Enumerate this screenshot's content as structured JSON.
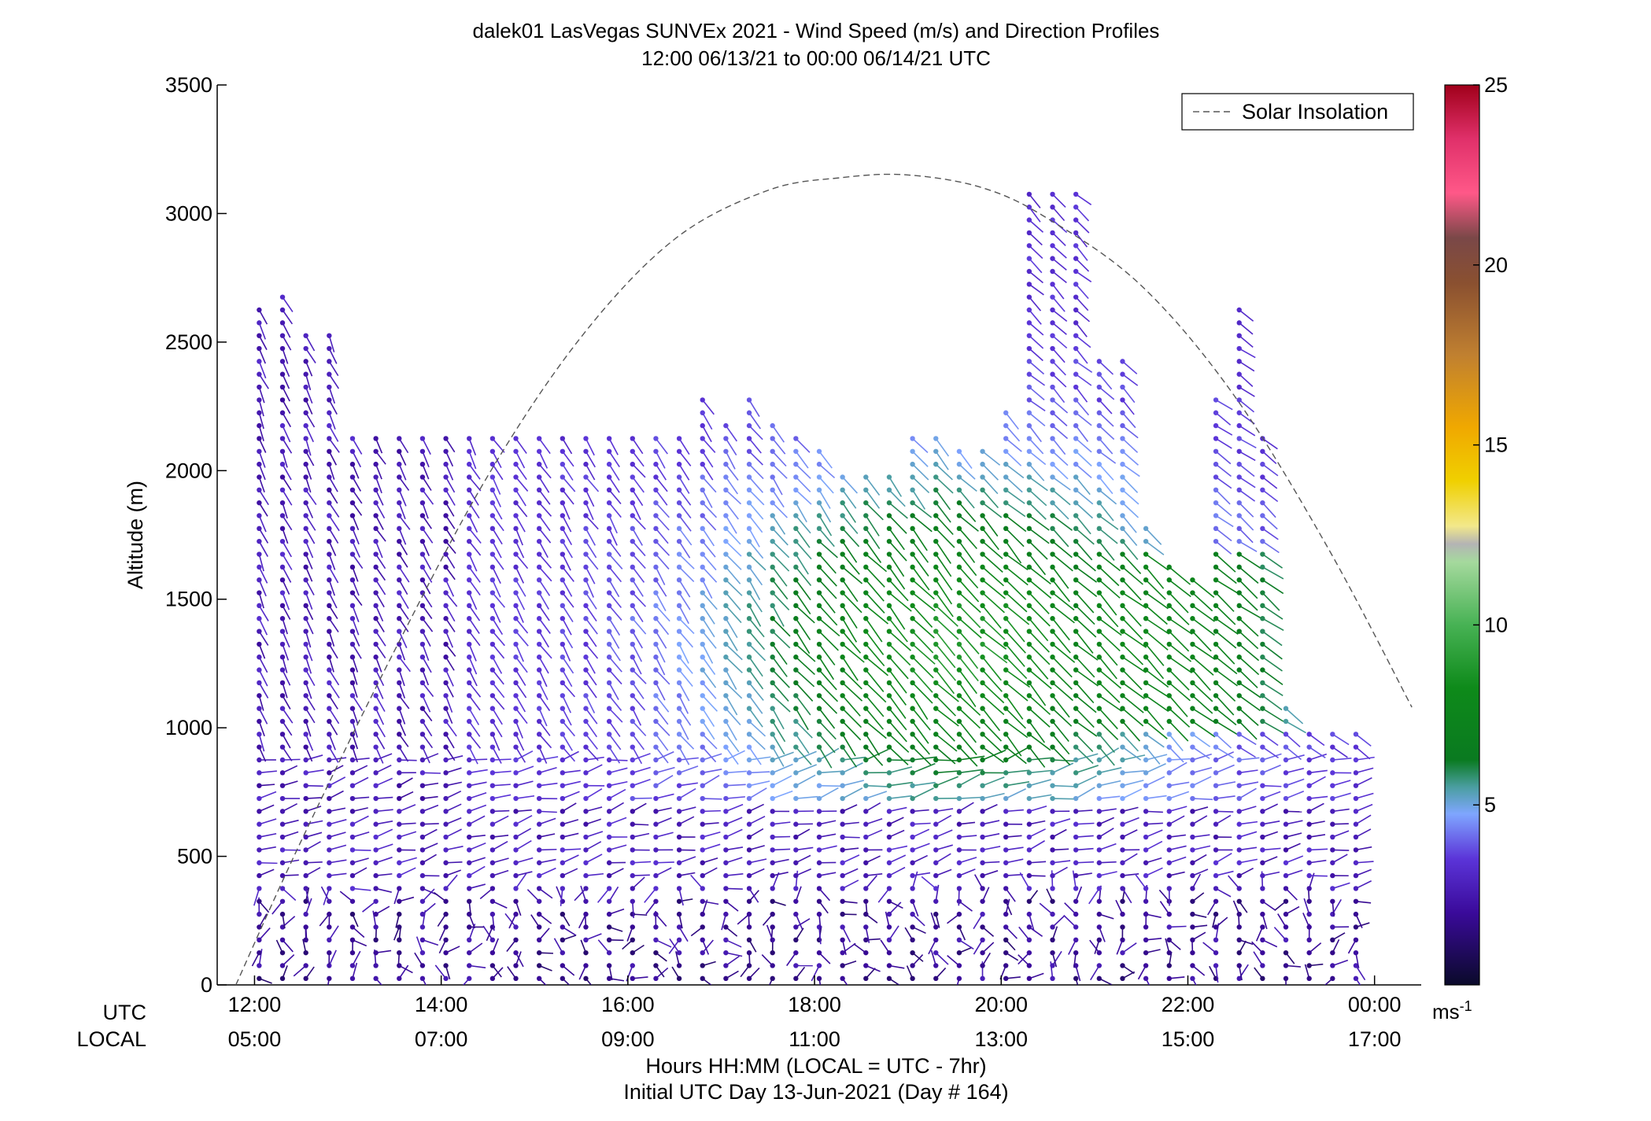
{
  "chart_data": {
    "type": "scatter",
    "title": "dalek01 LasVegas SUNVEx 2021 - Wind Speed (m/s) and Direction Profiles",
    "subtitle": "12:00 06/13/21 to 00:00 06/14/21  UTC",
    "ylabel": "Altitude (m)",
    "xlabel": "Hours HH:MM  (LOCAL = UTC - 7hr)",
    "xlabel2": "Initial UTC Day 13-Jun-2021 (Day # 164)",
    "row_label_utc": "UTC",
    "row_label_local": "LOCAL",
    "xlim": [
      11.6,
      24.5
    ],
    "ylim": [
      0,
      3500
    ],
    "y_ticks": [
      0,
      500,
      1000,
      1500,
      2000,
      2500,
      3000,
      3500
    ],
    "x_ticks": [
      {
        "value": 12,
        "utc": "12:00",
        "local": "05:00"
      },
      {
        "value": 14,
        "utc": "14:00",
        "local": "07:00"
      },
      {
        "value": 16,
        "utc": "16:00",
        "local": "09:00"
      },
      {
        "value": 18,
        "utc": "18:00",
        "local": "11:00"
      },
      {
        "value": 20,
        "utc": "20:00",
        "local": "13:00"
      },
      {
        "value": 22,
        "utc": "22:00",
        "local": "15:00"
      },
      {
        "value": 24,
        "utc": "00:00",
        "local": "17:00"
      }
    ],
    "legend": {
      "entries": [
        "Solar Insolation"
      ],
      "placement": "top-right"
    },
    "colorbar": {
      "min": 0,
      "max": 25,
      "ticks": [
        5,
        10,
        15,
        20,
        25
      ],
      "unit_label": "ms",
      "unit_exponent": "-1"
    },
    "solar_insolation": [
      {
        "x": 11.8,
        "y": 0
      },
      {
        "x": 12.5,
        "y": 560
      },
      {
        "x": 13.5,
        "y": 1300
      },
      {
        "x": 14.5,
        "y": 1980
      },
      {
        "x": 15.5,
        "y": 2520
      },
      {
        "x": 16.5,
        "y": 2900
      },
      {
        "x": 17.5,
        "y": 3090
      },
      {
        "x": 18.3,
        "y": 3140
      },
      {
        "x": 19.0,
        "y": 3150
      },
      {
        "x": 19.8,
        "y": 3100
      },
      {
        "x": 20.5,
        "y": 2980
      },
      {
        "x": 21.5,
        "y": 2720
      },
      {
        "x": 22.5,
        "y": 2290
      },
      {
        "x": 23.5,
        "y": 1700
      },
      {
        "x": 24.4,
        "y": 1080
      }
    ],
    "profile_times": [
      12.05,
      12.3,
      12.55,
      12.8,
      13.05,
      13.3,
      13.55,
      13.8,
      14.05,
      14.3,
      14.55,
      14.8,
      15.05,
      15.3,
      15.55,
      15.8,
      16.05,
      16.3,
      16.55,
      16.8,
      17.05,
      17.3,
      17.55,
      17.8,
      18.05,
      18.3,
      18.55,
      18.8,
      19.05,
      19.3,
      19.55,
      19.8,
      20.05,
      20.3,
      20.55,
      20.8,
      21.05,
      21.3,
      21.55,
      21.8,
      22.05,
      22.3,
      22.55,
      22.8,
      23.05,
      23.3,
      23.55,
      23.8
    ],
    "profile_tops": [
      2650,
      2680,
      2560,
      2560,
      2170,
      2170,
      2170,
      2170,
      2170,
      2170,
      2170,
      2170,
      2170,
      2170,
      2170,
      2170,
      2170,
      2170,
      2170,
      2300,
      2220,
      2310,
      2220,
      2170,
      2100,
      1990,
      1990,
      1990,
      2170,
      2170,
      2080,
      2080,
      2250,
      3080,
      3080,
      3080,
      2450,
      2450,
      1800,
      1640,
      1600,
      2300,
      2650,
      2170,
      1120,
      1000,
      1000,
      1000
    ]
  }
}
